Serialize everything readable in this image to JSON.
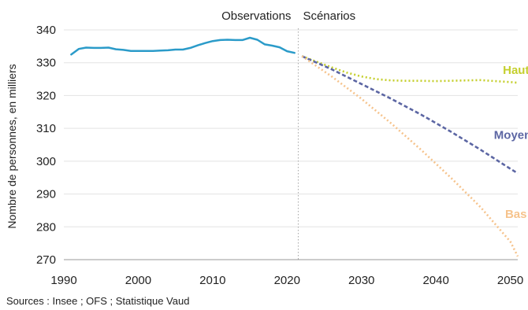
{
  "chart_data": {
    "type": "line",
    "ylabel": "Nombre de personnes, en milliers",
    "source": "Sources : Insee ; OFS ; Statistique Vaud",
    "period_labels": {
      "observations": "Observations",
      "scenarios": "Scénarios"
    },
    "xlim": [
      1990,
      2051
    ],
    "ylim": [
      270,
      340
    ],
    "xticks": [
      1990,
      2000,
      2010,
      2020,
      2030,
      2040,
      2050
    ],
    "yticks": [
      270,
      280,
      290,
      300,
      310,
      320,
      330,
      340
    ],
    "separator_year": 2021.5,
    "series": [
      {
        "id": "observations",
        "color": "#2b9bc9",
        "style": "solid",
        "x": [
          1991,
          1992,
          1993,
          1994,
          1995,
          1996,
          1997,
          1998,
          1999,
          2000,
          2001,
          2002,
          2003,
          2004,
          2005,
          2006,
          2007,
          2008,
          2009,
          2010,
          2011,
          2012,
          2013,
          2014,
          2015,
          2016,
          2017,
          2018,
          2019,
          2020,
          2021
        ],
        "y": [
          332.5,
          334.2,
          334.6,
          334.5,
          334.5,
          334.6,
          334.1,
          333.9,
          333.6,
          333.6,
          333.6,
          333.6,
          333.7,
          333.8,
          334.0,
          334.0,
          334.5,
          335.3,
          336.0,
          336.6,
          336.9,
          337.0,
          336.9,
          336.9,
          337.6,
          337.0,
          335.6,
          335.2,
          334.7,
          333.5,
          333.0
        ]
      },
      {
        "id": "haut",
        "name": "Haut",
        "color": "#c5cf2e",
        "style": "dotted",
        "x": [
          2022,
          2024,
          2026,
          2028,
          2030,
          2032,
          2034,
          2036,
          2038,
          2040,
          2042,
          2044,
          2046,
          2048,
          2050,
          2051
        ],
        "y": [
          332.0,
          330.3,
          328.6,
          327.0,
          325.8,
          325.0,
          324.6,
          324.5,
          324.5,
          324.4,
          324.5,
          324.6,
          324.7,
          324.4,
          324.1,
          323.9
        ]
      },
      {
        "id": "moyen",
        "name": "Moyen",
        "color": "#5c66a3",
        "style": "dashed",
        "x": [
          2022,
          2026,
          2030,
          2034,
          2038,
          2042,
          2046,
          2050,
          2051
        ],
        "y": [
          332.0,
          328.0,
          323.5,
          319.0,
          314.2,
          309.0,
          303.5,
          297.7,
          296.3
        ]
      },
      {
        "id": "bas",
        "name": "Bas",
        "color": "#f6c38c",
        "style": "dotted",
        "x": [
          2022,
          2026,
          2030,
          2034,
          2038,
          2042,
          2046,
          2050,
          2051
        ],
        "y": [
          332.0,
          325.8,
          319.0,
          311.5,
          303.5,
          295.0,
          286.0,
          275.5,
          271.0
        ]
      }
    ],
    "series_labels": [
      {
        "series": "haut",
        "text": "Haut",
        "x": 2049,
        "y": 326.6
      },
      {
        "series": "moyen",
        "text": "Moyen",
        "x": 2047.8,
        "y": 306.8
      },
      {
        "series": "bas",
        "text": "Bas",
        "x": 2049.3,
        "y": 282.7
      }
    ]
  }
}
